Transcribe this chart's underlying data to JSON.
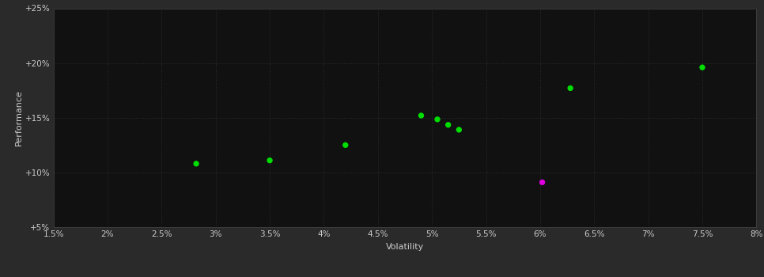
{
  "background_color": "#2a2a2a",
  "plot_bg_color": "#111111",
  "grid_color": "#444444",
  "green_points": [
    [
      2.82,
      10.8
    ],
    [
      3.5,
      11.1
    ],
    [
      4.2,
      12.5
    ],
    [
      4.9,
      15.2
    ],
    [
      5.05,
      14.85
    ],
    [
      5.15,
      14.35
    ],
    [
      5.25,
      13.9
    ],
    [
      6.28,
      17.7
    ],
    [
      7.5,
      19.6
    ]
  ],
  "magenta_points": [
    [
      6.02,
      9.1
    ]
  ],
  "point_color_green": "#00dd00",
  "point_color_magenta": "#dd00dd",
  "xlabel": "Volatility",
  "ylabel": "Performance",
  "xlim": [
    1.5,
    8.0
  ],
  "ylim": [
    5.0,
    25.0
  ],
  "xtick_labels": [
    "1.5%",
    "2%",
    "2.5%",
    "3%",
    "3.5%",
    "4%",
    "4.5%",
    "5%",
    "5.5%",
    "6%",
    "6.5%",
    "7%",
    "7.5%",
    "8%"
  ],
  "xtick_values": [
    1.5,
    2.0,
    2.5,
    3.0,
    3.5,
    4.0,
    4.5,
    5.0,
    5.5,
    6.0,
    6.5,
    7.0,
    7.5,
    8.0
  ],
  "ytick_labels": [
    "+5%",
    "+10%",
    "+15%",
    "+20%",
    "+25%"
  ],
  "ytick_values": [
    5.0,
    10.0,
    15.0,
    20.0,
    25.0
  ],
  "tick_color": "#cccccc",
  "label_color": "#cccccc",
  "marker_size": 28,
  "grid_style": ":",
  "grid_alpha": 0.6,
  "grid_linewidth": 0.6,
  "xlabel_fontsize": 8,
  "ylabel_fontsize": 8,
  "tick_fontsize": 7.5
}
